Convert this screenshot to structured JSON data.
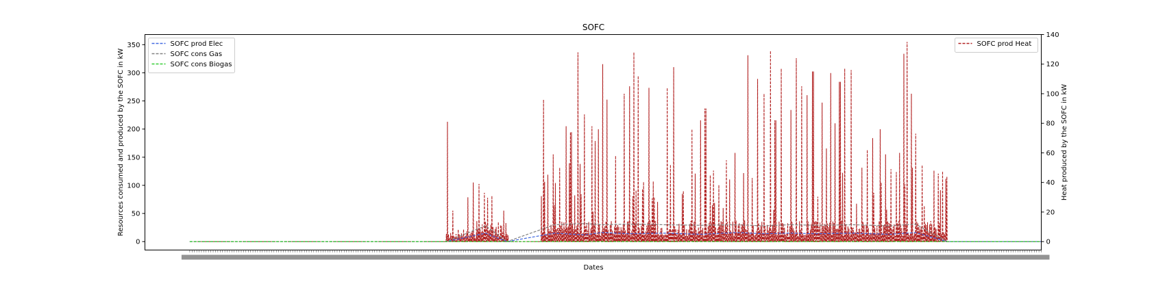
{
  "chart_data": {
    "type": "line",
    "title": "SOFC",
    "xlabel": "Dates",
    "ylabel": "Resources consumed and produced by the SOFC in kW",
    "ylabel_right": "Heat produced by the SOFC in kW",
    "ylim": [
      -15,
      368
    ],
    "ylim_right": [
      -5.7,
      140
    ],
    "yticks": [
      0,
      50,
      100,
      150,
      200,
      250,
      300,
      350
    ],
    "yticks_right": [
      0,
      20,
      40,
      60,
      80,
      100,
      120,
      140
    ],
    "x_range": [
      -0.5,
      9.5
    ],
    "grid": false,
    "legend_left": {
      "placement": "upper-left",
      "entries": [
        "SOFC prod Elec",
        "SOFC cons Gas",
        "SOFC cons Biogas"
      ]
    },
    "legend_right": {
      "placement": "upper-right",
      "entries": [
        "SOFC prod Heat"
      ]
    },
    "colors": {
      "elec": "#4169e1",
      "gas": "#808080",
      "biogas": "#32cd32",
      "heat": "#b22222"
    },
    "series": [
      {
        "name": "SOFC prod Elec",
        "axis": "left",
        "color": "#4169e1",
        "style": "dashed",
        "x": [
          0,
          2.86,
          3.3,
          3.54,
          4.07,
          4.4,
          4.6,
          4.9,
          5.3,
          5.7,
          6.1,
          6.4,
          6.7,
          7.0,
          7.4,
          7.8,
          8.1,
          8.45,
          10
        ],
        "y": [
          0,
          0,
          15,
          0,
          15,
          12,
          16,
          14,
          15,
          13,
          16,
          14,
          15,
          14,
          15,
          13,
          16,
          0,
          0
        ]
      },
      {
        "name": "SOFC cons Gas",
        "axis": "left",
        "color": "#808080",
        "style": "dashed",
        "x": [
          0,
          2.86,
          3.3,
          3.54,
          4.07,
          4.4,
          4.6,
          4.9,
          5.3,
          5.7,
          6.1,
          6.4,
          6.7,
          7.0,
          7.4,
          7.8,
          8.1,
          8.45,
          10
        ],
        "y": [
          0,
          0,
          28,
          0,
          30,
          32,
          30,
          31,
          30,
          29,
          30,
          28,
          30,
          29,
          30,
          28,
          31,
          0,
          0
        ]
      },
      {
        "name": "SOFC cons Biogas",
        "axis": "left",
        "color": "#32cd32",
        "style": "dashed",
        "x": [
          0,
          10
        ],
        "y": [
          0,
          0
        ]
      },
      {
        "name": "SOFC prod Heat",
        "axis": "right",
        "color": "#b22222",
        "style": "dashed",
        "baseline": 12,
        "active_ranges": [
          [
            2.86,
            3.55
          ],
          [
            3.92,
            8.45
          ]
        ],
        "peaks": [
          {
            "x": 2.87,
            "y": 81
          },
          {
            "x": 3.16,
            "y": 40
          },
          {
            "x": 3.22,
            "y": 39
          },
          {
            "x": 3.28,
            "y": 33
          },
          {
            "x": 3.95,
            "y": 96
          },
          {
            "x": 3.99,
            "y": 109
          },
          {
            "x": 4.05,
            "y": 59
          },
          {
            "x": 4.12,
            "y": 50
          },
          {
            "x": 4.2,
            "y": 78
          },
          {
            "x": 4.25,
            "y": 74
          },
          {
            "x": 4.33,
            "y": 128
          },
          {
            "x": 4.36,
            "y": 130
          },
          {
            "x": 4.4,
            "y": 86
          },
          {
            "x": 4.48,
            "y": 78
          },
          {
            "x": 4.52,
            "y": 68
          },
          {
            "x": 4.56,
            "y": 76
          },
          {
            "x": 4.6,
            "y": 120
          },
          {
            "x": 4.65,
            "y": 96
          },
          {
            "x": 4.75,
            "y": 58
          },
          {
            "x": 4.84,
            "y": 100
          },
          {
            "x": 4.9,
            "y": 105
          },
          {
            "x": 4.95,
            "y": 128
          },
          {
            "x": 5.0,
            "y": 112
          },
          {
            "x": 5.05,
            "y": 100
          },
          {
            "x": 5.12,
            "y": 104
          },
          {
            "x": 5.18,
            "y": 30
          },
          {
            "x": 5.32,
            "y": 104
          },
          {
            "x": 5.36,
            "y": 52
          },
          {
            "x": 5.4,
            "y": 118
          },
          {
            "x": 5.5,
            "y": 28
          },
          {
            "x": 5.6,
            "y": 76
          },
          {
            "x": 5.64,
            "y": 46
          },
          {
            "x": 5.7,
            "y": 82
          },
          {
            "x": 5.75,
            "y": 90
          },
          {
            "x": 5.8,
            "y": 96
          },
          {
            "x": 5.84,
            "y": 48
          },
          {
            "x": 5.9,
            "y": 88
          },
          {
            "x": 5.98,
            "y": 55
          },
          {
            "x": 6.02,
            "y": 42
          },
          {
            "x": 6.08,
            "y": 60
          },
          {
            "x": 6.18,
            "y": 112
          },
          {
            "x": 6.22,
            "y": 126
          },
          {
            "x": 6.27,
            "y": 43
          },
          {
            "x": 6.33,
            "y": 110
          },
          {
            "x": 6.4,
            "y": 100
          },
          {
            "x": 6.48,
            "y": 129
          },
          {
            "x": 6.53,
            "y": 82
          },
          {
            "x": 6.6,
            "y": 117
          },
          {
            "x": 6.7,
            "y": 89
          },
          {
            "x": 6.76,
            "y": 124
          },
          {
            "x": 6.82,
            "y": 105
          },
          {
            "x": 6.88,
            "y": 99
          },
          {
            "x": 6.95,
            "y": 115
          },
          {
            "x": 7.0,
            "y": 84
          },
          {
            "x": 7.05,
            "y": 94
          },
          {
            "x": 7.1,
            "y": 63
          },
          {
            "x": 7.15,
            "y": 114
          },
          {
            "x": 7.2,
            "y": 80
          },
          {
            "x": 7.25,
            "y": 108
          },
          {
            "x": 7.3,
            "y": 117
          },
          {
            "x": 7.38,
            "y": 116
          },
          {
            "x": 7.44,
            "y": 30
          },
          {
            "x": 7.5,
            "y": 50
          },
          {
            "x": 7.56,
            "y": 62
          },
          {
            "x": 7.62,
            "y": 70
          },
          {
            "x": 7.7,
            "y": 76
          },
          {
            "x": 7.76,
            "y": 59
          },
          {
            "x": 7.82,
            "y": 49
          },
          {
            "x": 7.88,
            "y": 47
          },
          {
            "x": 7.92,
            "y": 60
          },
          {
            "x": 7.97,
            "y": 127
          },
          {
            "x": 8.0,
            "y": 135
          },
          {
            "x": 8.05,
            "y": 100
          },
          {
            "x": 8.1,
            "y": 73
          },
          {
            "x": 8.2,
            "y": 12
          },
          {
            "x": 8.3,
            "y": 48
          },
          {
            "x": 8.35,
            "y": 46
          },
          {
            "x": 8.4,
            "y": 46
          },
          {
            "x": 8.44,
            "y": 44
          }
        ]
      }
    ]
  }
}
